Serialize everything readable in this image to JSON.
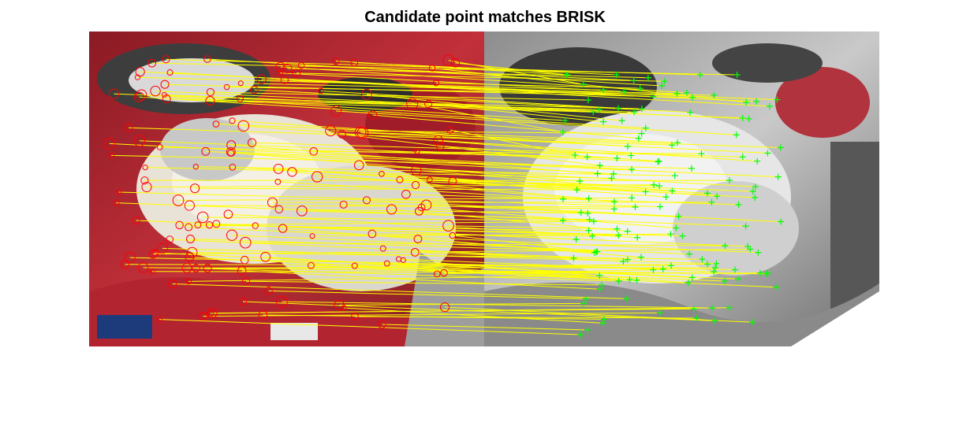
{
  "figure": {
    "title": "Candidate point matches BRISK"
  },
  "display": {
    "left_image": "color graffiti photo (red, white, grey)",
    "right_image": "grayscale graffiti photo with red tint, warped view",
    "left_marker": "red-circle",
    "right_marker": "green-plus",
    "match_line_color": "#ffff00",
    "left_marker_color": "#ff0000",
    "right_marker_color": "#00ff00"
  }
}
